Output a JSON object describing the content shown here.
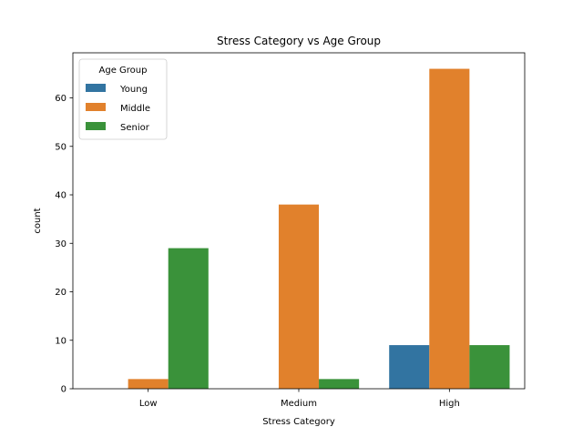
{
  "chart_data": {
    "type": "bar",
    "title": "Stress Category vs Age Group",
    "xlabel": "Stress Category",
    "ylabel": "count",
    "categories": [
      "Low",
      "Medium",
      "High"
    ],
    "series": [
      {
        "name": "Young",
        "color": "#3274a1",
        "values": [
          0,
          0,
          9
        ]
      },
      {
        "name": "Middle",
        "color": "#e1812c",
        "values": [
          2,
          38,
          66
        ]
      },
      {
        "name": "Senior",
        "color": "#3a923a",
        "values": [
          29,
          2,
          9
        ]
      }
    ],
    "ylim": [
      0,
      69.3
    ],
    "yticks": [
      0,
      10,
      20,
      30,
      40,
      50,
      60
    ],
    "legend": {
      "title": "Age Group",
      "placement": "top-left"
    },
    "grid": false
  }
}
